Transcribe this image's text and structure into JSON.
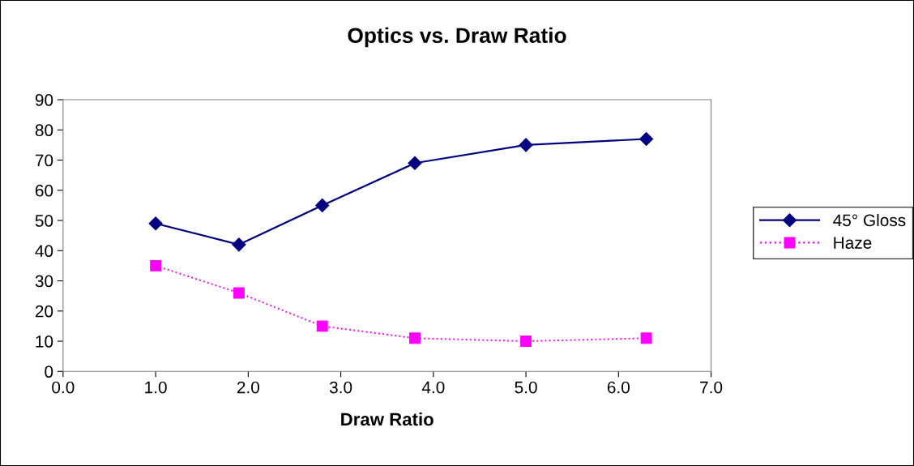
{
  "chart_data": {
    "type": "line",
    "title": "Optics vs. Draw Ratio",
    "xlabel": "Draw Ratio",
    "x": [
      1.0,
      1.9,
      2.8,
      3.8,
      5.0,
      6.3
    ],
    "series": [
      {
        "name": "45° Gloss",
        "color": "#000080",
        "values": [
          49,
          42,
          55,
          69,
          75,
          77
        ],
        "marker": "diamond",
        "line_style": "solid"
      },
      {
        "name": "Haze",
        "color": "#ff00ff",
        "values": [
          35,
          26,
          15,
          11,
          10,
          11
        ],
        "marker": "square",
        "line_style": "dotted"
      }
    ],
    "xlim": [
      0,
      7
    ],
    "xticks": [
      {
        "value": 0,
        "label": "0.0"
      },
      {
        "value": 1,
        "label": "1.0"
      },
      {
        "value": 2,
        "label": "2.0"
      },
      {
        "value": 3,
        "label": "3.0"
      },
      {
        "value": 4,
        "label": "4.0"
      },
      {
        "value": 5,
        "label": "5.0"
      },
      {
        "value": 6,
        "label": "6.0"
      },
      {
        "value": 7,
        "label": "7.0"
      }
    ],
    "ylim": [
      0,
      90
    ],
    "yticks": [
      0,
      10,
      20,
      30,
      40,
      50,
      60,
      70,
      80,
      90
    ],
    "grid": false,
    "legend": "right"
  }
}
